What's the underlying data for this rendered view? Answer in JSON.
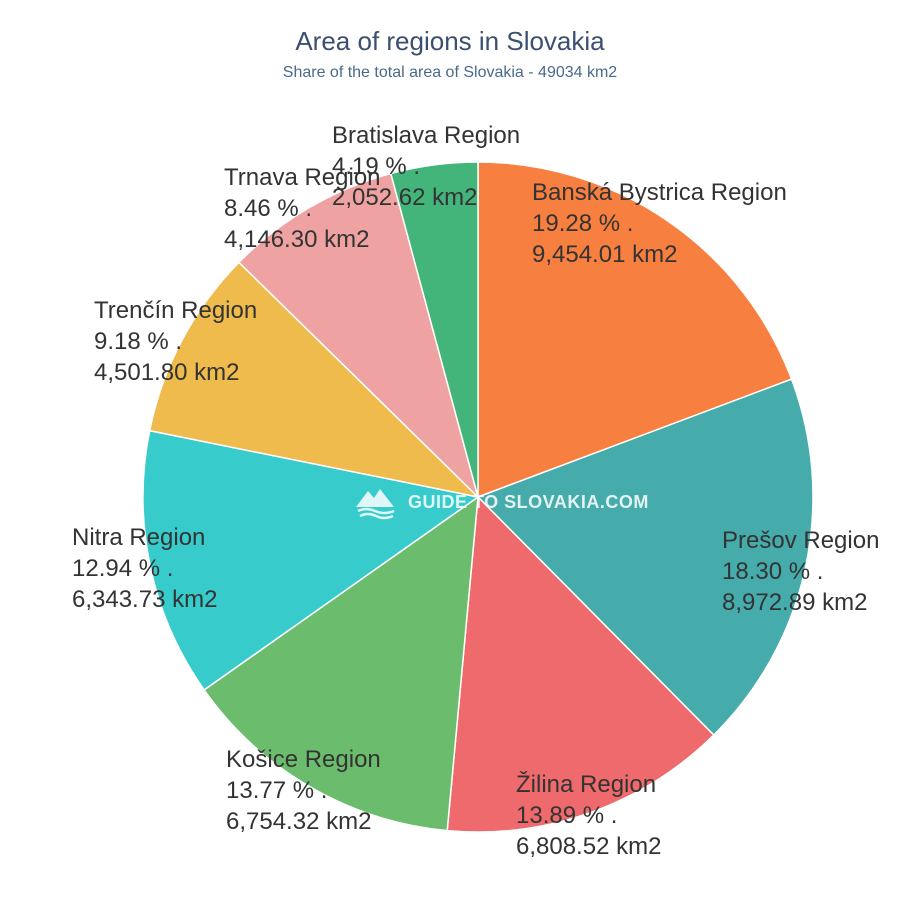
{
  "chart_data": {
    "type": "pie",
    "title": "Area of regions in Slovakia",
    "subtitle": "Share of the total area of Slovakia - 49034 km2",
    "slices": [
      {
        "label": "Banská Bystrica Region",
        "percent": 19.28,
        "percent_text": "19.28 %  .",
        "area_text": "9,454.01 km2",
        "color": "#f77f40"
      },
      {
        "label": "Prešov Region",
        "percent": 18.3,
        "percent_text": "18.30 %  .",
        "area_text": "8,972.89 km2",
        "color": "#46abab"
      },
      {
        "label": "Žilina Region",
        "percent": 13.89,
        "percent_text": "13.89 %  .",
        "area_text": "6,808.52 km2",
        "color": "#ee6a6c"
      },
      {
        "label": "Košice Region",
        "percent": 13.77,
        "percent_text": "13.77 %  .",
        "area_text": "6,754.32 km2",
        "color": "#6cbc6e"
      },
      {
        "label": "Nitra Region",
        "percent": 12.94,
        "percent_text": "12.94 %  .",
        "area_text": "6,343.73 km2",
        "color": "#37cbcb"
      },
      {
        "label": "Trenčín Region",
        "percent": 9.18,
        "percent_text": "9.18 %  .",
        "area_text": "4,501.80 km2",
        "color": "#efbb4d"
      },
      {
        "label": "Trnava Region",
        "percent": 8.46,
        "percent_text": "8.46 %  .",
        "area_text": "4,146.30 km2",
        "color": "#eea2a2"
      },
      {
        "label": "Bratislava Region",
        "percent": 4.19,
        "percent_text": "4.19 %  .",
        "area_text": "2,052.62 km2",
        "color": "#43b57a"
      }
    ]
  },
  "watermark": {
    "text": "GUIDE TO SLOVAKIA.COM",
    "icon": "mountain-logo-icon"
  }
}
